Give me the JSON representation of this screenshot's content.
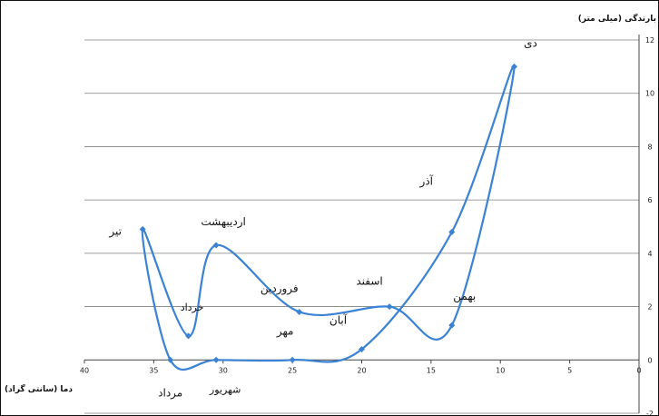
{
  "chart_data": {
    "type": "line",
    "xlabel": "دما (سانتی گراد)",
    "ylabel": "بارندگی (میلی متر)",
    "xlim": [
      40,
      0
    ],
    "ylim": [
      -2,
      12
    ],
    "x_ticks": [
      "40",
      "35",
      "30",
      "25",
      "20",
      "15",
      "10",
      "5",
      "0"
    ],
    "y_ticks": [
      "12",
      "10",
      "8",
      "6",
      "4",
      "2",
      "0",
      "-2"
    ],
    "grid": true,
    "colors": {
      "line": "#3a82d4",
      "grid": "#7f7f7f"
    },
    "months": [
      {
        "label": "دی",
        "x": 9.0,
        "y": 11.0
      },
      {
        "label": "بهمن",
        "x": 13.5,
        "y": 1.3
      },
      {
        "label": "اسفند",
        "x": 18.0,
        "y": 2.0
      },
      {
        "label": "فروردین",
        "x": 24.5,
        "y": 1.8
      },
      {
        "label": "اردیبهشت",
        "x": 30.5,
        "y": 4.3
      },
      {
        "label": "خرداد",
        "x": 32.5,
        "y": 0.9
      },
      {
        "label": "تیر",
        "x": 35.8,
        "y": 4.9
      },
      {
        "label": "مرداد",
        "x": 33.8,
        "y": 0.0
      },
      {
        "label": "شهریور",
        "x": 30.5,
        "y": 0.0
      },
      {
        "label": "مهر",
        "x": 25.0,
        "y": 0.0
      },
      {
        "label": "آبان",
        "x": 20.0,
        "y": 0.4
      },
      {
        "label": "آذر",
        "x": 13.5,
        "y": 4.8
      }
    ]
  }
}
